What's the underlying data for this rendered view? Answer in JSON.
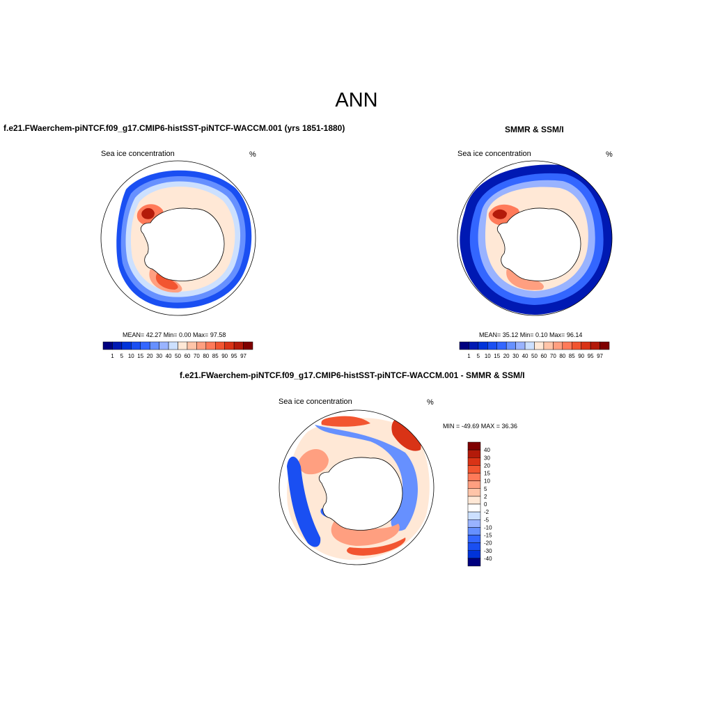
{
  "main_title": "ANN",
  "panels": [
    {
      "title": "f.e21.FWaerchem-piNTCF.f09_g17.CMIP6-histSST-piNTCF-WACCM.001 (yrs 1851-1880)",
      "variable": "Sea ice concentration",
      "units": "%",
      "stats": "MEAN=  42.27  Min=   0.00  Max=  97.58"
    },
    {
      "title": "SMMR & SSM/I",
      "variable": "Sea ice concentration",
      "units": "%",
      "stats": "MEAN=  35.12  Min=   0.10  Max=  96.14"
    },
    {
      "title": "f.e21.FWaerchem-piNTCF.f09_g17.CMIP6-histSST-piNTCF-WACCM.001 - SMMR & SSM/I",
      "variable": "Sea ice concentration",
      "units": "%",
      "stats": "MIN = -49.69 MAX =  36.36"
    }
  ],
  "colorbar_horizontal": {
    "labels": [
      "1",
      "5",
      "10",
      "15",
      "20",
      "30",
      "40",
      "50",
      "60",
      "70",
      "80",
      "85",
      "90",
      "95",
      "97"
    ],
    "colors": [
      "#00007f",
      "#0019b3",
      "#0033d9",
      "#1a4ff2",
      "#3366ff",
      "#6690ff",
      "#99b3ff",
      "#cce0ff",
      "#ffe8d6",
      "#ffc4a8",
      "#ff9f80",
      "#ff7a59",
      "#f25530",
      "#d93316",
      "#b31a0a",
      "#7f0000"
    ]
  },
  "colorbar_vertical": {
    "labels": [
      "40",
      "30",
      "20",
      "15",
      "10",
      "5",
      "2",
      "0",
      "-2",
      "-5",
      "-10",
      "-15",
      "-20",
      "-30",
      "-40"
    ],
    "colors": [
      "#7f0000",
      "#b31a0a",
      "#d93316",
      "#f25530",
      "#ff7a59",
      "#ff9f80",
      "#ffc4a8",
      "#ffe8d6",
      "#ffffff",
      "#cce0ff",
      "#99b3ff",
      "#6690ff",
      "#3366ff",
      "#1a4ff2",
      "#0033d9",
      "#00007f"
    ]
  }
}
